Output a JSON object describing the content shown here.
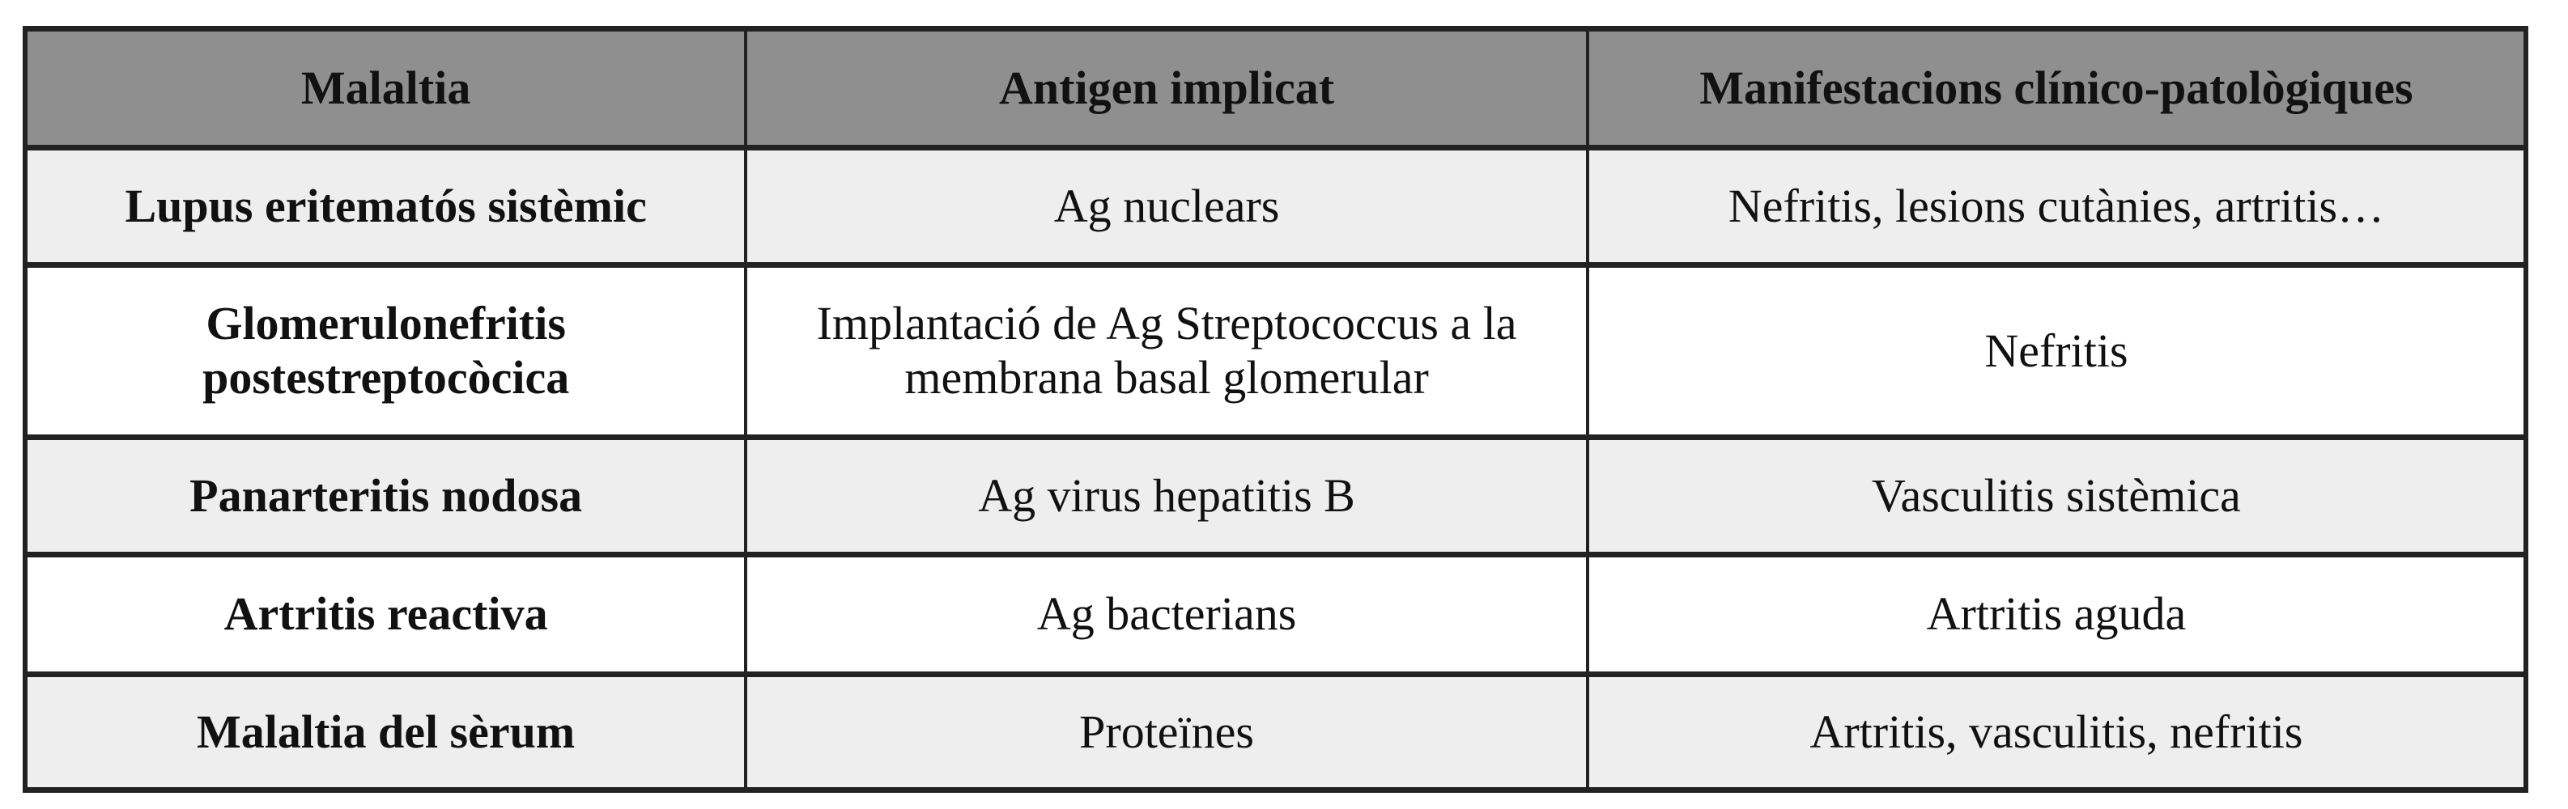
{
  "table": {
    "headers": [
      "Malaltia",
      "Antigen implicat",
      "Manifestacions clínico-patològiques"
    ],
    "rows": [
      [
        "Lupus eritematós sistèmic",
        "Ag nuclears",
        "Nefritis, lesions cutànies, artritis…"
      ],
      [
        "Glomerulonefritis postestreptocòcica",
        "Implantació de Ag Streptococcus a la membrana basal glomerular",
        "Nefritis"
      ],
      [
        "Panarteritis nodosa",
        "Ag virus hepatitis B",
        "Vasculitis sistèmica"
      ],
      [
        "Artritis reactiva",
        "Ag bacterians",
        "Artritis aguda"
      ],
      [
        "Malaltia del sèrum",
        "Proteïnes",
        "Artritis, vasculitis, nefritis"
      ]
    ],
    "colors": {
      "header_bg": "#8f8f8f",
      "shaded_row_bg": "#eeeeee",
      "border": "#222222"
    }
  }
}
